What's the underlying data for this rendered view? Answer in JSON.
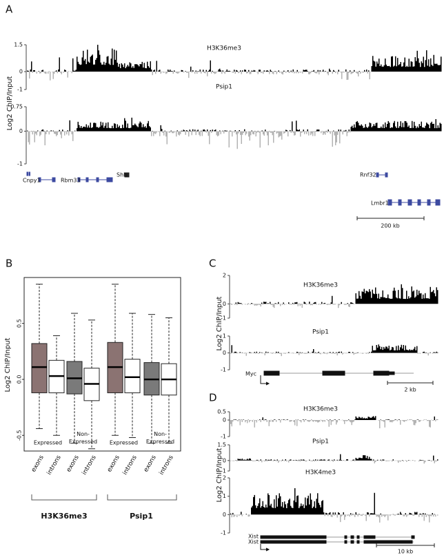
{
  "panel_labels": [
    "A",
    "B",
    "C",
    "D"
  ],
  "panel_a": {
    "y_label": "Log2 ChIP/Input",
    "tracks": [
      {
        "name": "H3K36me3",
        "ylim": [
          -1,
          1.5
        ],
        "ticks": [
          1.5,
          0,
          -1
        ]
      },
      {
        "name": "Psip1",
        "ylim": [
          -1,
          0.75
        ],
        "ticks": [
          0.75,
          0,
          -1
        ]
      }
    ],
    "genes": [
      "Cnpy1",
      "Rbm33",
      "Shh",
      "Rnf32",
      "Lmbr1"
    ],
    "scale": "200 kb"
  },
  "panel_c": {
    "y_label": "Log2 ChIP/Input",
    "tracks": [
      {
        "name": "H3K36me3",
        "ylim": [
          -1,
          2
        ],
        "ticks": [
          2,
          0,
          -1
        ]
      },
      {
        "name": "Psip1",
        "ylim": [
          -1,
          1
        ],
        "ticks": [
          1,
          0,
          -1
        ]
      }
    ],
    "genes": [
      "Myc"
    ],
    "scale": "2 kb"
  },
  "panel_d": {
    "y_label": "Log2 ChIP/Input",
    "tracks": [
      {
        "name": "H3K36me3",
        "ylim": [
          -1,
          0.5
        ],
        "ticks": [
          0.5,
          0,
          -1
        ]
      },
      {
        "name": "Psip1",
        "ylim": [
          -1,
          1.5
        ],
        "ticks": [
          1.5,
          0,
          -1
        ]
      },
      {
        "name": "H3K4me3",
        "ylim": [
          -1,
          2
        ],
        "ticks": [
          2,
          1,
          0,
          -1
        ]
      }
    ],
    "genes": [
      "Xist",
      "Xist"
    ],
    "scale": "10 kb"
  },
  "chart_data": {
    "type": "box",
    "y_label": "Log2 ChIP/Input",
    "categories": [
      "exons",
      "introns",
      "exons",
      "introns",
      "exons",
      "introns",
      "exons",
      "introns"
    ],
    "subgroups": [
      "Expressed",
      "Non-Expressed",
      "Expressed",
      "Non-Expressed"
    ],
    "groups": [
      "H3K36me3",
      "Psip1"
    ],
    "ylim": [
      -0.64,
      0.91
    ],
    "yticks": [
      {
        "value": -0.5,
        "label": "-0.5"
      },
      {
        "value": 0,
        "label": "0.0"
      },
      0.5
    ],
    "colors": [
      "#8b7372",
      "#ffffff",
      "#7a7a7a",
      "#ffffff",
      "#8b7372",
      "#ffffff",
      "#7a7a7a",
      "#ffffff"
    ],
    "boxes": [
      {
        "low": -0.44,
        "q1": -0.12,
        "median": 0.11,
        "q3": 0.32,
        "high": 0.85
      },
      {
        "low": -0.5,
        "q1": -0.12,
        "median": 0.03,
        "q3": 0.17,
        "high": 0.39
      },
      {
        "low": -0.57,
        "q1": -0.13,
        "median": 0.01,
        "q3": 0.16,
        "high": 0.59
      },
      {
        "low": -0.62,
        "q1": -0.19,
        "median": -0.04,
        "q3": 0.1,
        "high": 0.53
      },
      {
        "low": -0.5,
        "q1": -0.12,
        "median": 0.11,
        "q3": 0.33,
        "high": 0.85
      },
      {
        "low": -0.52,
        "q1": -0.12,
        "median": 0.02,
        "q3": 0.18,
        "high": 0.59
      },
      {
        "low": -0.57,
        "q1": -0.14,
        "median": 0,
        "q3": 0.15,
        "high": 0.58
      },
      {
        "low": -0.57,
        "q1": -0.14,
        "median": 0,
        "q3": 0.14,
        "high": 0.55
      }
    ]
  }
}
